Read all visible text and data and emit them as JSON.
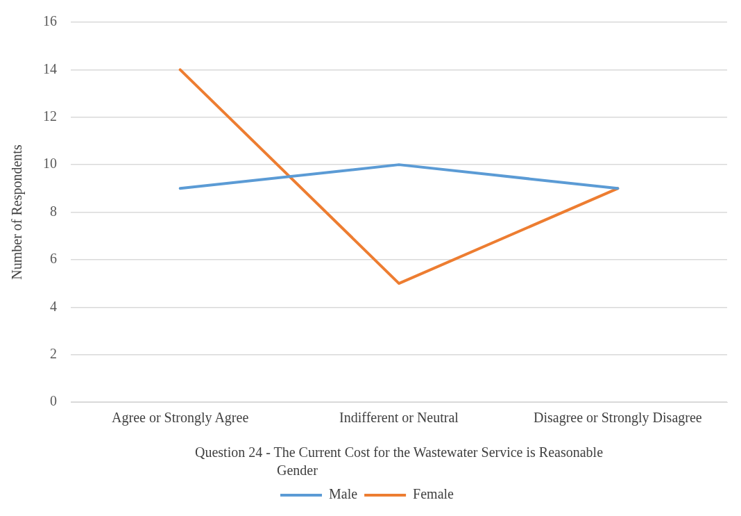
{
  "chart_data": {
    "type": "line",
    "xlabel": "Question 24 - The Current Cost for the Wastewater Service is Reasonable",
    "ylabel": "Number of Respondents",
    "legend_title": "Gender",
    "categories": [
      "Agree or Strongly Agree",
      "Indifferent or Neutral",
      "Disagree or Strongly Disagree"
    ],
    "series": [
      {
        "name": "Male",
        "color": "#5b9bd5",
        "values": [
          9,
          10,
          9
        ]
      },
      {
        "name": "Female",
        "color": "#ed7d31",
        "values": [
          14,
          5,
          9
        ]
      }
    ],
    "ylim": [
      0,
      16
    ],
    "yticks": [
      0,
      2,
      4,
      6,
      8,
      10,
      12,
      14,
      16
    ],
    "grid": "y",
    "legend": "bottom",
    "marker": "none",
    "line_style": "solid"
  }
}
